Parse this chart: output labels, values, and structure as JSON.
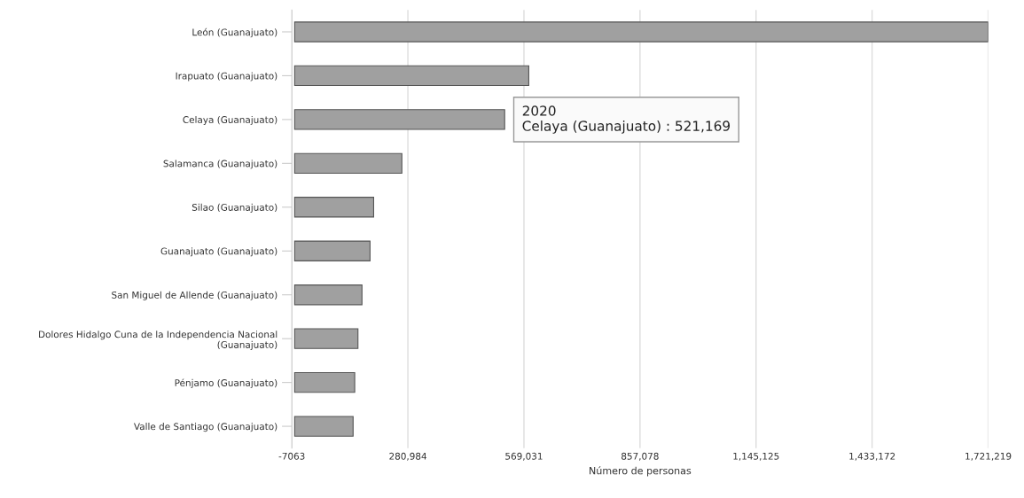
{
  "chart_data": {
    "type": "bar",
    "orientation": "horizontal",
    "xlabel": "Número de personas",
    "categories": [
      "León (Guanajuato)",
      "Irapuato (Guanajuato)",
      "Celaya (Guanajuato)",
      "Salamanca (Guanajuato)",
      "Silao (Guanajuato)",
      "Guanajuato (Guanajuato)",
      "San Miguel de Allende (Guanajuato)",
      "Dolores Hidalgo Cuna de la Independencia Nacional\n(Guanajuato)",
      "Pénjamo (Guanajuato)",
      "Valle de Santiago (Guanajuato)"
    ],
    "values": [
      1721000,
      581000,
      521169,
      266000,
      196000,
      187000,
      167000,
      157000,
      149000,
      145000
    ],
    "color": "#a0a0a0",
    "xlim": [
      -7063,
      1721219
    ],
    "xticks": [
      {
        "value": -7063,
        "label": "-7063"
      },
      {
        "value": 280984,
        "label": "280,984"
      },
      {
        "value": 569031,
        "label": "569,031"
      },
      {
        "value": 857078,
        "label": "857,078"
      },
      {
        "value": 1145125,
        "label": "1,145,125"
      },
      {
        "value": 1433172,
        "label": "1,433,172"
      },
      {
        "value": 1721219,
        "label": "1,721,219"
      }
    ],
    "grid": "x",
    "annotations": [
      {
        "text": "2020\nCelaya (Guanajuato) : 521,169",
        "x": 521169,
        "y": "Celaya (Guanajuato)"
      }
    ]
  }
}
